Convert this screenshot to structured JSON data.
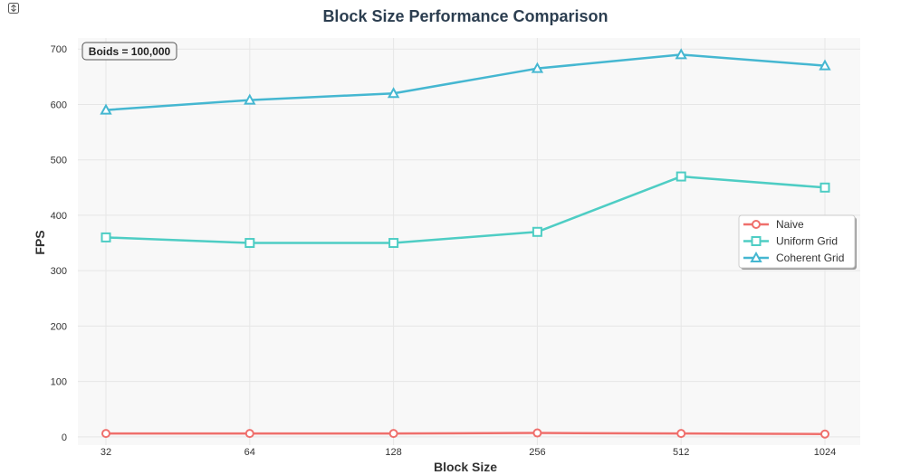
{
  "chart_data": {
    "type": "line",
    "title": "Block Size Performance Comparison",
    "xlabel": "Block Size",
    "ylabel": "FPS",
    "categories": [
      "32",
      "64",
      "128",
      "256",
      "512",
      "1024"
    ],
    "ylim": [
      -15,
      720
    ],
    "yticks": [
      0,
      100,
      200,
      300,
      400,
      500,
      600,
      700
    ],
    "grid": true,
    "legend_position": "center-right",
    "annotation": "Boids = 100,000",
    "series": [
      {
        "name": "Naive",
        "values": [
          6,
          6,
          6,
          7,
          6,
          5
        ],
        "color": "#ef6f6c",
        "marker": "circle"
      },
      {
        "name": "Uniform Grid",
        "values": [
          360,
          350,
          350,
          370,
          470,
          450
        ],
        "color": "#4ecdc4",
        "marker": "square"
      },
      {
        "name": "Coherent Grid",
        "values": [
          590,
          608,
          620,
          665,
          690,
          670
        ],
        "color": "#45b7d1",
        "marker": "triangle"
      }
    ]
  },
  "colors": {
    "title": "#2c3e50",
    "plot_background": "#f8f8f8",
    "grid": "#e6e6e6"
  },
  "icons": {
    "top_left": "expand-icon"
  }
}
